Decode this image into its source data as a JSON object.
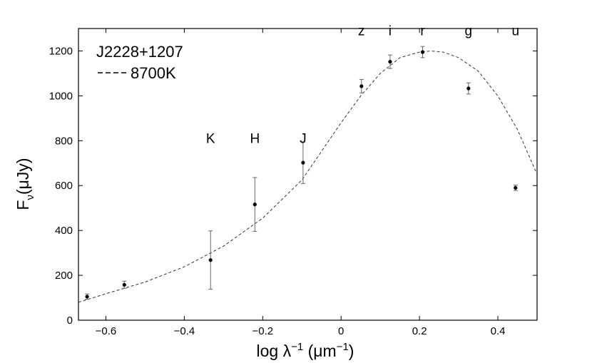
{
  "chart_data": {
    "type": "scatter",
    "title": "",
    "xlabel": "log λ⁻¹ (μm⁻¹)",
    "xlabel_parts": {
      "main": "log λ",
      "sup1": "−1",
      "unit_open": " (μm",
      "sup2": "−1",
      "unit_close": ")"
    },
    "ylabel": "Fν(μJy)",
    "ylabel_parts": {
      "main": "F",
      "sub": "ν",
      "rest": "(μJy)"
    },
    "xlim": [
      -0.67,
      0.5
    ],
    "ylim": [
      0,
      1300
    ],
    "grid": false,
    "x_ticks": [
      -0.6,
      -0.4,
      -0.2,
      0,
      0.2,
      0.4
    ],
    "x_tick_labels": [
      "−0.6",
      "−0.4",
      "−0.2",
      "0",
      "0.2",
      "0.4"
    ],
    "y_ticks": [
      0,
      200,
      400,
      600,
      800,
      1000,
      1200
    ],
    "y_tick_labels": [
      "0",
      "200",
      "400",
      "600",
      "800",
      "1000",
      "1200"
    ],
    "legend": {
      "placement": "top-left",
      "entries": [
        {
          "label": "J2228+1207",
          "style": "none"
        },
        {
          "label": "8700K",
          "style": "dashed"
        }
      ]
    },
    "series": [
      {
        "name": "J2228+1207",
        "marker": "dot",
        "points": [
          {
            "x": -0.648,
            "y": 105,
            "err": 12
          },
          {
            "x": -0.553,
            "y": 158,
            "err": 16
          },
          {
            "x": -0.333,
            "y": 268,
            "err": 130
          },
          {
            "x": -0.22,
            "y": 516,
            "err": 120
          },
          {
            "x": -0.097,
            "y": 702,
            "err": 93
          },
          {
            "x": 0.052,
            "y": 1043,
            "err": 30
          },
          {
            "x": 0.125,
            "y": 1152,
            "err": 30
          },
          {
            "x": 0.208,
            "y": 1195,
            "err": 25
          },
          {
            "x": 0.325,
            "y": 1033,
            "err": 25
          },
          {
            "x": 0.445,
            "y": 590,
            "err": 12
          }
        ]
      },
      {
        "name": "8700K",
        "type": "line",
        "style": "dashed",
        "x": [
          -0.67,
          -0.6,
          -0.5,
          -0.4,
          -0.3,
          -0.2,
          -0.1,
          0,
          0.05,
          0.1,
          0.15,
          0.2,
          0.23,
          0.26,
          0.3,
          0.35,
          0.4,
          0.45,
          0.5
        ],
        "values": [
          80,
          118,
          170,
          238,
          330,
          455,
          625,
          880,
          1000,
          1100,
          1170,
          1195,
          1200,
          1195,
          1170,
          1110,
          1000,
          850,
          650
        ]
      }
    ],
    "band_labels": [
      {
        "text": "K",
        "x": -0.333,
        "y": 790
      },
      {
        "text": "H",
        "x": -0.22,
        "y": 790
      },
      {
        "text": "J",
        "x": -0.097,
        "y": 790
      },
      {
        "text": "z",
        "x": 0.052,
        "y": 1270
      },
      {
        "text": "i",
        "x": 0.125,
        "y": 1270
      },
      {
        "text": "r",
        "x": 0.208,
        "y": 1270
      },
      {
        "text": "g",
        "x": 0.325,
        "y": 1270
      },
      {
        "text": "u",
        "x": 0.445,
        "y": 1270
      }
    ]
  }
}
